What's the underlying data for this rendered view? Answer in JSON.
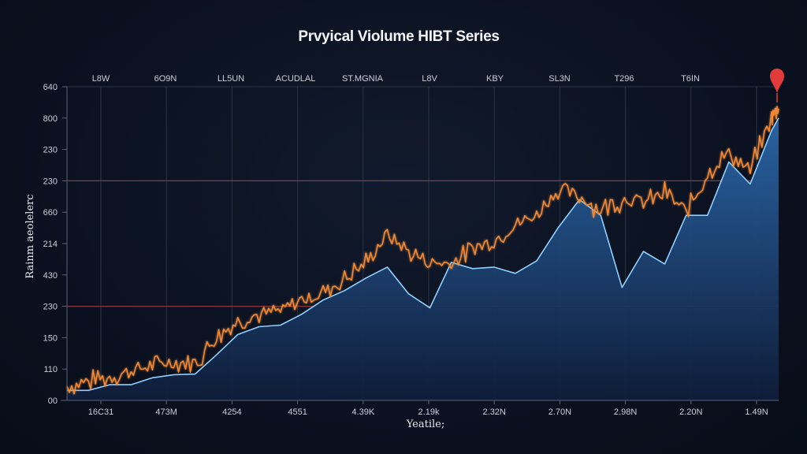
{
  "chart_data": {
    "type": "area",
    "title": "Prvyical Violume HIBT Series",
    "xlabel": "Yeatile;",
    "ylabel": "Rainm aeolelerc",
    "top_labels": [
      "L8W",
      "6O9N",
      "LL5UN",
      "ACUDLAL",
      "ST.MGNIA",
      "L8V",
      "KBY",
      "SL3N",
      "T296",
      "T6IN"
    ],
    "x_tick_labels": [
      "16C31",
      "473M",
      "4254",
      "4551",
      "4.39K",
      "2.19k",
      "2.32N",
      "2.70N",
      "2.98N",
      "2.20N",
      "1.49N"
    ],
    "y_tick_labels": [
      "00",
      "110",
      "150",
      "230",
      "430",
      "214",
      "660",
      "230",
      "230",
      "800",
      "640"
    ],
    "ylim_index": [
      0,
      10
    ],
    "grid": true,
    "reference_lines_index": [
      3,
      7
    ],
    "marker": {
      "x_index": 10,
      "y_index": 10,
      "shape": "pin",
      "color": "#e23b3b"
    },
    "colors": {
      "area_fill": "#1f4f86",
      "area_line": "#8fd0ff",
      "volatile_line": "#f08a38",
      "reference_line": "#8a3a44",
      "grid": "#2a3446",
      "axis": "#5a6478"
    },
    "series": [
      {
        "name": "Smoothed baseline (area)",
        "x_index": [
          0,
          0.3,
          0.6,
          0.9,
          1.2,
          1.5,
          1.8,
          2.1,
          2.4,
          2.7,
          3.0,
          3.3,
          3.6,
          3.9,
          4.2,
          4.5,
          4.8,
          5.1,
          5.4,
          5.7,
          6.0,
          6.3,
          6.6,
          6.9,
          7.2,
          7.5,
          7.8,
          8.1,
          8.4,
          8.7,
          9.0,
          9.3,
          9.6,
          9.9,
          10.0
        ],
        "y_index": [
          0.32,
          0.32,
          0.5,
          0.5,
          0.72,
          0.82,
          0.84,
          1.45,
          2.1,
          2.35,
          2.4,
          2.75,
          3.2,
          3.5,
          3.9,
          4.25,
          3.4,
          2.95,
          4.4,
          4.2,
          4.25,
          4.05,
          4.45,
          5.5,
          6.4,
          5.9,
          3.6,
          4.75,
          4.35,
          5.9,
          5.9,
          7.6,
          6.9,
          8.6,
          9.0
        ]
      },
      {
        "name": "Volatile series",
        "x_index": [
          0,
          0.3,
          0.6,
          0.9,
          1.2,
          1.5,
          1.8,
          2.1,
          2.4,
          2.7,
          3.0,
          3.3,
          3.6,
          3.9,
          4.2,
          4.5,
          4.8,
          5.1,
          5.4,
          5.7,
          6.0,
          6.3,
          6.6,
          6.9,
          7.2,
          7.5,
          7.8,
          8.1,
          8.4,
          8.7,
          9.0,
          9.3,
          9.6,
          9.9,
          10.0
        ],
        "y_index": [
          0.45,
          0.6,
          0.75,
          0.95,
          1.1,
          1.25,
          1.2,
          2.0,
          2.55,
          2.75,
          2.85,
          3.2,
          3.45,
          3.85,
          4.4,
          5.3,
          4.75,
          4.4,
          4.35,
          4.85,
          5.1,
          5.6,
          5.9,
          6.7,
          6.5,
          6.1,
          6.4,
          6.3,
          6.6,
          6.0,
          7.2,
          7.9,
          7.3,
          9.0,
          9.3
        ]
      }
    ]
  }
}
